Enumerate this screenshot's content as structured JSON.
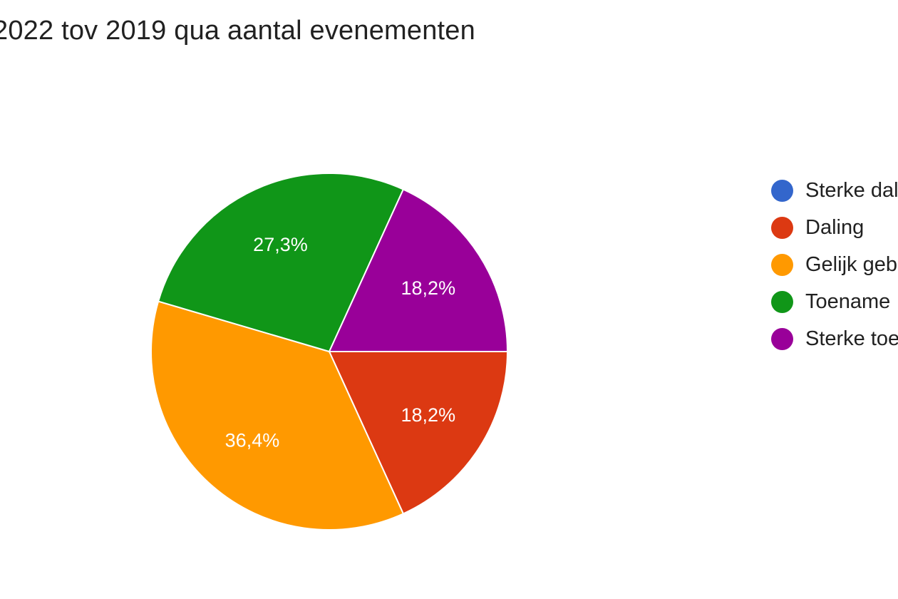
{
  "chart_data": {
    "type": "pie",
    "title": "2022 tov 2019 qua aantal evenementen",
    "slices": [
      {
        "name": "Sterke daling",
        "value": 0,
        "label": "",
        "color": "#3366cc"
      },
      {
        "name": "Daling",
        "value": 18.2,
        "label": "18,2%",
        "color": "#dc3912"
      },
      {
        "name": "Gelijk gebleven",
        "value": 36.4,
        "label": "36,4%",
        "color": "#ff9900"
      },
      {
        "name": "Toename",
        "value": 27.3,
        "label": "27,3%",
        "color": "#109618"
      },
      {
        "name": "Sterke toename",
        "value": 18.2,
        "label": "18,2%",
        "color": "#990099"
      }
    ],
    "legend_position": "right",
    "start_angle_degrees_clockwise_from_top": 90
  }
}
